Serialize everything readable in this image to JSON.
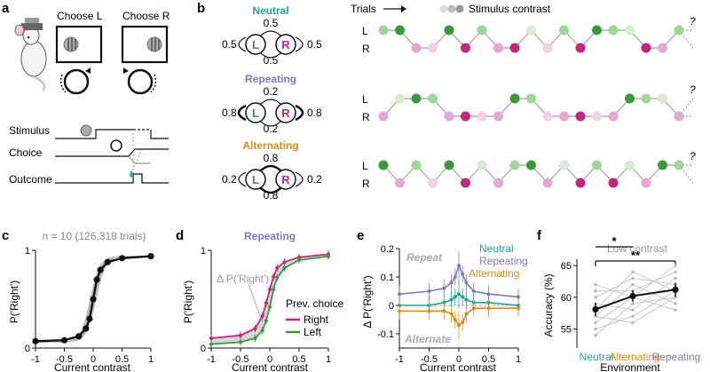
{
  "panel_labels": {
    "a": "a",
    "b": "b",
    "c": "c",
    "d": "d",
    "e": "e",
    "f": "f"
  },
  "panel_a": {
    "choose_left": "Choose L",
    "choose_right": "Choose R",
    "timeline_labels": [
      "Stimulus",
      "Choice",
      "Outcome"
    ]
  },
  "panel_b": {
    "trials_label": "Trials",
    "stimulus_contrast_label": "Stimulus contrast",
    "question_mark": "?",
    "row_labels": [
      "L",
      "R"
    ],
    "environments": [
      {
        "name": "Neutral",
        "color": "#1fa49a",
        "top": "0.5",
        "bottom": "0.5",
        "left_self": "0.5",
        "right_self": "0.5",
        "seq": [
          1,
          1,
          0,
          0,
          1,
          0,
          1,
          0,
          0,
          1,
          0,
          1,
          0,
          1,
          1,
          1,
          0,
          0,
          1
        ],
        "shade": [
          1,
          2,
          1,
          0,
          2,
          2,
          1,
          1,
          2,
          0,
          0,
          1,
          2,
          2,
          1,
          0,
          2,
          1,
          1
        ]
      },
      {
        "name": "Repeating",
        "color": "#7b7bbf",
        "top": "0.2",
        "bottom": "0.2",
        "left_self": "0.8",
        "right_self": "0.8",
        "seq": [
          0,
          1,
          1,
          1,
          0,
          0,
          0,
          0,
          1,
          1,
          0,
          0,
          0,
          0,
          0,
          1,
          1,
          1,
          0
        ],
        "shade": [
          1,
          0,
          2,
          1,
          1,
          2,
          0,
          1,
          2,
          1,
          0,
          1,
          2,
          0,
          1,
          2,
          1,
          0,
          1
        ]
      },
      {
        "name": "Alternating",
        "color": "#e08b12",
        "top": "0.8",
        "bottom": "0.8",
        "left_self": "0.2",
        "right_self": "0.2",
        "seq": [
          1,
          0,
          1,
          0,
          1,
          0,
          1,
          0,
          1,
          1,
          0,
          1,
          0,
          1,
          0,
          1,
          0,
          1,
          1
        ],
        "shade": [
          2,
          1,
          1,
          0,
          2,
          2,
          0,
          1,
          1,
          2,
          1,
          0,
          2,
          1,
          2,
          0,
          1,
          2,
          1
        ]
      }
    ],
    "node_left": "L",
    "node_right": "R"
  },
  "panel_c": {
    "title": "n = 10 (126,318 trials)",
    "xlabel": "Current contrast",
    "ylabel": "P('Right')"
  },
  "panel_d": {
    "title": "Repeating",
    "xlabel": "Current contrast",
    "ylabel": "P('Right')",
    "delta_label": "Δ P('Right')",
    "legend_title": "Prev. choice",
    "legend_right": "Right",
    "legend_left": "Left"
  },
  "panel_e": {
    "xlabel": "Current contrast",
    "ylabel": "Δ P('Right')",
    "repeat_label": "Repeat",
    "alternate_label": "Alternate",
    "legend": [
      "Neutral",
      "Repeating",
      "Alternating"
    ]
  },
  "panel_f": {
    "title": "Low contrast",
    "xlabel": "Environment",
    "ylabel": "Accuracy (%)",
    "sig1": "*",
    "sig2": "**"
  },
  "colors": {
    "neutral": "#1fa49a",
    "repeating": "#7b7bbf",
    "alternating": "#e08b12",
    "green_dark": "#3a9a3a",
    "green_light": "#9fd69a",
    "magenta_dark": "#c4267f",
    "magenta_light": "#e6a8d2",
    "gray": "#9a9a9a"
  },
  "chart_data": [
    {
      "panel": "c",
      "type": "line",
      "title": "n = 10 (126,318 trials)",
      "xlabel": "Current contrast",
      "ylabel": "P('Right')",
      "xlim": [
        -1,
        1
      ],
      "ylim": [
        0,
        1
      ],
      "xticks": [
        -1,
        -0.5,
        0,
        0.5,
        1
      ],
      "xtick_labels": [
        "-1",
        "-0.5",
        "0",
        "0.5",
        "1"
      ],
      "yticks": [
        0,
        1
      ],
      "x": [
        -1,
        -0.5,
        -0.25,
        -0.125,
        -0.0625,
        0,
        0.0625,
        0.125,
        0.25,
        0.5,
        1
      ],
      "series": [
        {
          "values": [
            0.07,
            0.08,
            0.12,
            0.2,
            0.3,
            0.5,
            0.7,
            0.8,
            0.88,
            0.92,
            0.94
          ]
        }
      ]
    },
    {
      "panel": "d",
      "type": "line",
      "title": "Repeating",
      "xlabel": "Current contrast",
      "ylabel": "P('Right')",
      "xlim": [
        -1,
        1
      ],
      "ylim": [
        0,
        1
      ],
      "xticks": [
        -1,
        -0.5,
        0,
        0.5,
        1
      ],
      "xtick_labels": [
        "-1",
        "-0.5",
        "0",
        "0.5",
        "1"
      ],
      "yticks": [
        0,
        1
      ],
      "x": [
        -1,
        -0.5,
        -0.25,
        -0.125,
        -0.0625,
        0,
        0.0625,
        0.125,
        0.25,
        0.5,
        1
      ],
      "series": [
        {
          "name": "Right",
          "values": [
            0.1,
            0.13,
            0.2,
            0.33,
            0.46,
            0.6,
            0.73,
            0.82,
            0.88,
            0.93,
            0.96
          ]
        },
        {
          "name": "Left",
          "values": [
            0.04,
            0.06,
            0.1,
            0.18,
            0.28,
            0.42,
            0.6,
            0.72,
            0.82,
            0.9,
            0.94
          ]
        }
      ]
    },
    {
      "panel": "e",
      "type": "line",
      "xlabel": "Current contrast",
      "ylabel": "Δ P('Right')",
      "xlim": [
        -1,
        1
      ],
      "ylim": [
        -0.15,
        0.2
      ],
      "xticks": [
        -1,
        -0.5,
        0,
        0.5,
        1
      ],
      "xtick_labels": [
        "-1",
        "-0.5",
        "0",
        "0.5",
        "1"
      ],
      "yticks": [
        -0.1,
        0,
        0.1,
        0.2
      ],
      "ytick_labels": [
        "-0.1",
        "0",
        "0.1",
        "0.2"
      ],
      "x": [
        -1,
        -0.5,
        -0.25,
        -0.125,
        -0.0625,
        0,
        0.0625,
        0.125,
        0.25,
        0.5,
        1
      ],
      "series": [
        {
          "name": "Neutral",
          "values": [
            0.0,
            0.0,
            0.01,
            0.02,
            0.03,
            0.04,
            0.03,
            0.02,
            0.01,
            0.01,
            0.0
          ]
        },
        {
          "name": "Repeating",
          "values": [
            0.04,
            0.05,
            0.06,
            0.08,
            0.1,
            0.14,
            0.11,
            0.08,
            0.05,
            0.04,
            0.03
          ]
        },
        {
          "name": "Alternating",
          "values": [
            -0.02,
            -0.02,
            -0.02,
            -0.03,
            -0.05,
            -0.07,
            -0.06,
            -0.03,
            -0.01,
            -0.01,
            -0.01
          ]
        }
      ]
    },
    {
      "panel": "f",
      "type": "line",
      "title": "Low contrast",
      "xlabel": "Environment",
      "ylabel": "Accuracy (%)",
      "categories": [
        "Neutral",
        "Alternating",
        "Repeating"
      ],
      "ylim": [
        52,
        66
      ],
      "yticks": [
        55,
        60,
        65
      ],
      "ytick_labels": [
        "55",
        "60",
        "65"
      ],
      "series": [
        {
          "values": [
            58.1,
            60.2,
            61.2
          ],
          "errors": [
            1.0,
            0.9,
            1.1
          ]
        }
      ],
      "individual": [
        [
          55,
          57,
          61
        ],
        [
          56,
          60,
          58
        ],
        [
          57,
          62,
          59
        ],
        [
          58,
          64,
          61
        ],
        [
          59,
          58,
          63
        ],
        [
          60,
          63,
          62
        ],
        [
          54,
          59,
          60
        ],
        [
          61,
          61,
          64
        ],
        [
          62,
          60,
          65
        ],
        [
          57,
          56,
          60
        ]
      ]
    }
  ]
}
